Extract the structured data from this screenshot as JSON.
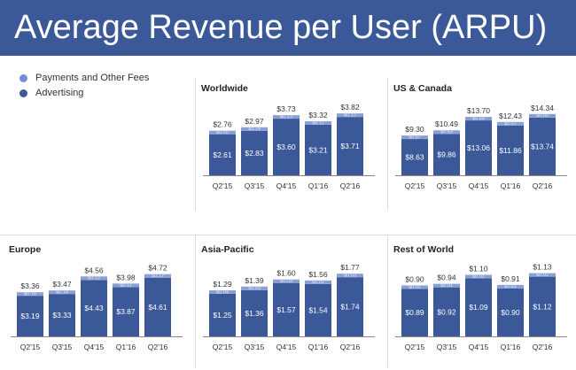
{
  "title": "Average Revenue per User (ARPU)",
  "colors": {
    "header": "#3b5998",
    "advertising": "#3b5998",
    "payments": "#8a9fd3",
    "label_inside": "#ffffff",
    "label_outside": "#333333",
    "axis": "#888888"
  },
  "legend": [
    {
      "label": "Payments and Other Fees",
      "color": "#6f8fd6"
    },
    {
      "label": "Advertising",
      "color": "#3b5998"
    }
  ],
  "chart_data": [
    {
      "type": "bar",
      "stacked": true,
      "title": "Worldwide",
      "categories": [
        "Q2'15",
        "Q3'15",
        "Q4'15",
        "Q1'16",
        "Q2'16"
      ],
      "totals": [
        "$2.76",
        "$2.97",
        "$3.73",
        "$3.32",
        "$3.82"
      ],
      "series": [
        {
          "name": "Advertising",
          "values": [
            2.61,
            2.83,
            3.6,
            3.21,
            3.71
          ],
          "labels": [
            "$2.61",
            "$2.83",
            "$3.60",
            "$3.21",
            "$3.71"
          ]
        },
        {
          "name": "Payments and Other Fees",
          "values": [
            0.15,
            0.14,
            0.13,
            0.11,
            0.12
          ],
          "labels": [
            "$0.15",
            "$0.14",
            "$0.13",
            "$0.11",
            "$0.12"
          ]
        }
      ]
    },
    {
      "type": "bar",
      "stacked": true,
      "title": "US & Canada",
      "categories": [
        "Q2'15",
        "Q3'15",
        "Q4'15",
        "Q1'16",
        "Q2'16"
      ],
      "totals": [
        "$9.30",
        "$10.49",
        "$13.70",
        "$12.43",
        "$14.34"
      ],
      "series": [
        {
          "name": "Advertising",
          "values": [
            8.63,
            9.86,
            13.06,
            11.86,
            13.74
          ],
          "labels": [
            "$8.63",
            "$9.86",
            "$13.06",
            "$11.86",
            "$13.74"
          ]
        },
        {
          "name": "Payments and Other Fees",
          "values": [
            0.67,
            0.63,
            0.64,
            0.57,
            0.6
          ],
          "labels": [
            "$0.67",
            "$0.63",
            "$0.64",
            "$0.57",
            "$0.60"
          ]
        }
      ]
    },
    {
      "type": "bar",
      "stacked": true,
      "title": "Europe",
      "categories": [
        "Q2'15",
        "Q3'15",
        "Q4'15",
        "Q1'16",
        "Q2'16"
      ],
      "totals": [
        "$3.36",
        "$3.47",
        "$4.56",
        "$3.98",
        "$4.72"
      ],
      "series": [
        {
          "name": "Advertising",
          "values": [
            3.19,
            3.33,
            4.43,
            3.87,
            4.61
          ],
          "labels": [
            "$3.19",
            "$3.33",
            "$4.43",
            "$3.87",
            "$4.61"
          ]
        },
        {
          "name": "Payments and Other Fees",
          "values": [
            0.16,
            0.14,
            0.13,
            0.11,
            0.12
          ],
          "labels": [
            "$0.16",
            "$0.14",
            "$0.13",
            "$0.11",
            "$0.12"
          ]
        }
      ]
    },
    {
      "type": "bar",
      "stacked": true,
      "title": "Asia-Pacific",
      "categories": [
        "Q2'15",
        "Q3'15",
        "Q4'15",
        "Q1'16",
        "Q2'16"
      ],
      "totals": [
        "$1.29",
        "$1.39",
        "$1.60",
        "$1.56",
        "$1.77"
      ],
      "series": [
        {
          "name": "Advertising",
          "values": [
            1.25,
            1.36,
            1.57,
            1.54,
            1.74
          ],
          "labels": [
            "$1.25",
            "$1.36",
            "$1.57",
            "$1.54",
            "$1.74"
          ]
        },
        {
          "name": "Payments and Other Fees",
          "values": [
            0.04,
            0.03,
            0.03,
            0.02,
            0.03
          ],
          "labels": [
            "$0.04",
            "$0.03",
            "$0.03",
            "$0.02",
            "$0.03"
          ]
        }
      ]
    },
    {
      "type": "bar",
      "stacked": true,
      "title": "Rest of World",
      "categories": [
        "Q2'15",
        "Q3'15",
        "Q4'15",
        "Q1'16",
        "Q2'16"
      ],
      "totals": [
        "$0.90",
        "$0.94",
        "$1.10",
        "$0.91",
        "$1.13"
      ],
      "series": [
        {
          "name": "Advertising",
          "values": [
            0.89,
            0.92,
            1.09,
            0.9,
            1.12
          ],
          "labels": [
            "$0.89",
            "$0.92",
            "$1.09",
            "$0.90",
            "$1.12"
          ]
        },
        {
          "name": "Payments and Other Fees",
          "values": [
            0.01,
            0.01,
            0.01,
            0.01,
            0.01
          ],
          "labels": [
            "$0.01",
            "$0.01",
            "$0.01",
            "$0.01",
            "$0.01"
          ]
        }
      ]
    }
  ]
}
